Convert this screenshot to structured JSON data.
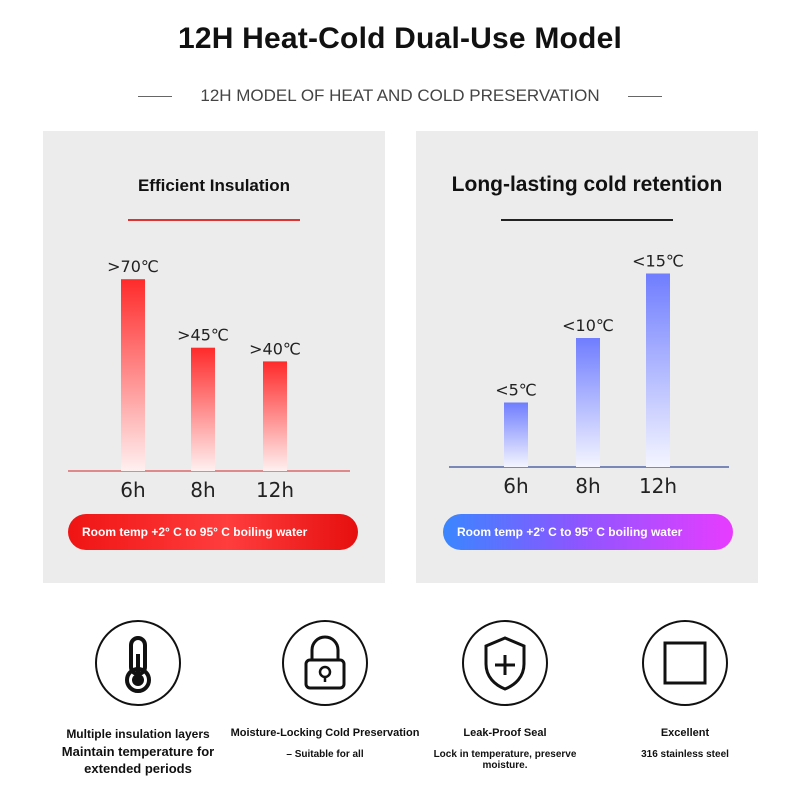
{
  "header": {
    "title": "12H Heat-Cold Dual-Use Model",
    "subtitle": "12H MODEL OF HEAT AND COLD PRESERVATION"
  },
  "panels": {
    "left": {
      "title": "Efficient Insulation",
      "pill": "Room temp +2° C to 95° C boiling water",
      "colors": {
        "bar_top": "#ff2a2a",
        "bar_bottom": "#fff0f0",
        "axis": "#d96a6a"
      }
    },
    "right": {
      "title": "Long-lasting cold retention",
      "pill": "Room temp +2° C to 95° C boiling water",
      "colors": {
        "bar_top": "#6f7dff",
        "bar_bottom": "#f4f5ff",
        "axis": "#5567a8"
      }
    }
  },
  "chart_data": [
    {
      "type": "bar",
      "title": "Efficient Insulation",
      "categories": [
        "6h",
        "8h",
        "12h"
      ],
      "values": [
        70,
        45,
        40
      ],
      "data_labels": [
        ">70℃",
        ">45℃",
        ">40℃"
      ],
      "grid": false,
      "legend": "none"
    },
    {
      "type": "bar",
      "title": "Long-lasting cold retention",
      "categories": [
        "6h",
        "8h",
        "12h"
      ],
      "values": [
        5,
        10,
        15
      ],
      "data_labels": [
        "<5℃",
        "<10℃",
        "<15℃"
      ],
      "grid": false,
      "legend": "none"
    }
  ],
  "features": [
    {
      "icon": "thermometer-icon",
      "line1": "Multiple insulation layers",
      "line2": "Maintain temperature for extended periods"
    },
    {
      "icon": "lock-icon",
      "line1": "Moisture-Locking Cold Preservation",
      "line2": "– Suitable for all"
    },
    {
      "icon": "shield-plus-icon",
      "line1": "Leak-Proof Seal",
      "line2": "Lock in temperature, preserve moisture."
    },
    {
      "icon": "square-icon",
      "line1": "Excellent",
      "line2": "316 stainless steel"
    }
  ]
}
